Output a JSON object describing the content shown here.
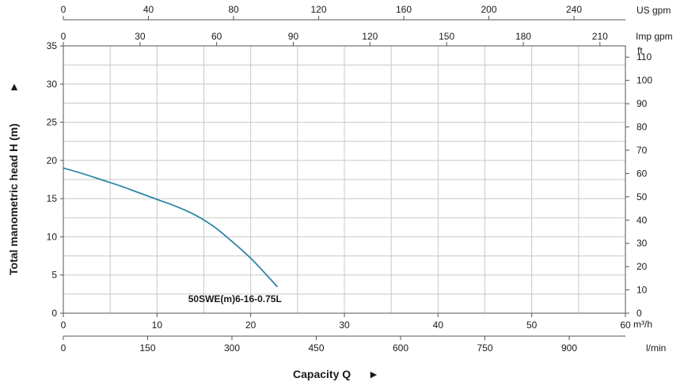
{
  "chart_data": {
    "type": "line",
    "title": "",
    "xlabel": "Capacity Q",
    "ylabel": "Total manometric head H (m)",
    "arrow_glyph": "►",
    "xlim": [
      0,
      60
    ],
    "ylim": [
      0,
      35
    ],
    "x_unit": "m³/h",
    "x_ticks": [
      0,
      10,
      20,
      30,
      40,
      50,
      60
    ],
    "y_ticks": [
      0,
      5,
      10,
      15,
      20,
      25,
      30,
      35
    ],
    "grid": true,
    "secondary_axes": {
      "bottom_lmin": {
        "unit": "l/min",
        "ticks": [
          0,
          150,
          300,
          450,
          600,
          750,
          900
        ],
        "per_m3h": 16.6667
      },
      "top_usgpm": {
        "unit": "US gpm",
        "ticks": [
          0,
          40,
          80,
          120,
          160,
          200,
          240
        ],
        "per_m3h": 4.4029
      },
      "top_impgpm": {
        "unit": "Imp gpm",
        "ticks": [
          0,
          30,
          60,
          90,
          120,
          150,
          180,
          210
        ],
        "per_m3h": 3.6662
      },
      "right_ft": {
        "unit": "ft",
        "ticks": [
          0,
          10,
          20,
          30,
          40,
          50,
          60,
          70,
          80,
          90,
          100,
          110
        ],
        "per_m": 3.28084
      }
    },
    "series": [
      {
        "name": "50SWE(m)6-16-0.75L",
        "color": "#2e86a6",
        "x": [
          0,
          2,
          4,
          6,
          8,
          10,
          12,
          14,
          16,
          18,
          20,
          22,
          22.8
        ],
        "y": [
          19.0,
          18.3,
          17.5,
          16.7,
          15.8,
          14.9,
          14.0,
          12.9,
          11.4,
          9.4,
          7.2,
          4.6,
          3.5
        ]
      }
    ]
  }
}
